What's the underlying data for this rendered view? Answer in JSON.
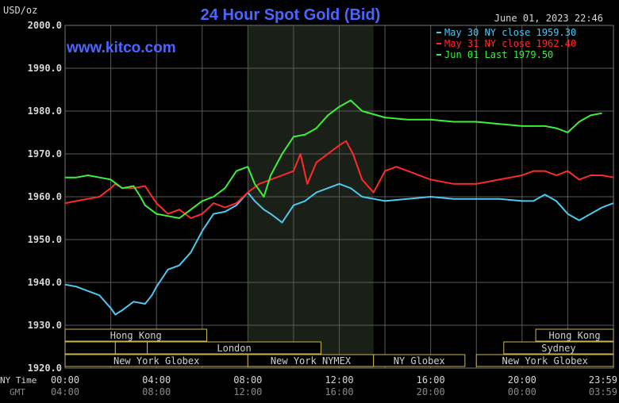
{
  "header": {
    "units": "USD/oz",
    "title": "24 Hour Spot Gold (Bid)",
    "timestamp": "June 01, 2023 22:46",
    "watermark": "www.kitco.com"
  },
  "colors": {
    "background": "#000000",
    "plot_background": "#000000",
    "nymex_shade": "#1a2018",
    "grid": "#5a5a5a",
    "title": "#4a66ff",
    "text": "#d8d8d8",
    "session_border": "#c8b45a",
    "session_text": "#d0d0d0",
    "blue": "#4fc8f0",
    "red": "#ff2a2a",
    "green": "#3cf03c"
  },
  "axis_labels": {
    "ny_time": "NY Time",
    "gmt": "GMT"
  },
  "sessions": [
    {
      "label": "Hong Kong",
      "start": 0,
      "end": 6.2,
      "row": 0
    },
    {
      "label": "",
      "start": 0,
      "end": 2.2,
      "row": 1
    },
    {
      "label": "",
      "start": 2.2,
      "end": 3.6,
      "row": 1
    },
    {
      "label": "London",
      "start": 3.6,
      "end": 11.2,
      "row": 1
    },
    {
      "label": "New York Globex",
      "start": 0,
      "end": 8.0,
      "row": 2
    },
    {
      "label": "New York NYMEX",
      "start": 8.0,
      "end": 13.5,
      "row": 2
    },
    {
      "label": "NY Globex",
      "start": 13.5,
      "end": 17.5,
      "row": 2
    },
    {
      "label": "Hong Kong",
      "start": 20.6,
      "end": 24,
      "row": 0
    },
    {
      "label": "Sydney",
      "start": 19.2,
      "end": 24,
      "row": 1
    },
    {
      "label": "New York Globex",
      "start": 18.0,
      "end": 24,
      "row": 2
    }
  ],
  "chart_data": {
    "type": "line",
    "title": "24 Hour Spot Gold (Bid)",
    "ylabel": "USD/oz",
    "ylim": [
      1920,
      2000
    ],
    "xlim": [
      0,
      24
    ],
    "shaded_region": [
      8.0,
      13.5
    ],
    "yticks": [
      {
        "value": 2000,
        "label": "2000.0"
      },
      {
        "value": 1990,
        "label": "1990.0"
      },
      {
        "value": 1980,
        "label": "1980.0"
      },
      {
        "value": 1970,
        "label": "1970.0"
      },
      {
        "value": 1960,
        "label": "1960.0"
      },
      {
        "value": 1950,
        "label": "1950.0"
      },
      {
        "value": 1940,
        "label": "1940.0"
      },
      {
        "value": 1930,
        "label": "1930.0"
      },
      {
        "value": 1920,
        "label": "1920.0"
      }
    ],
    "xticks": [
      {
        "value": 0,
        "ny": "00:00",
        "gmt": "04:00"
      },
      {
        "value": 4,
        "ny": "04:00",
        "gmt": "08:00"
      },
      {
        "value": 8,
        "ny": "08:00",
        "gmt": "12:00"
      },
      {
        "value": 12,
        "ny": "12:00",
        "gmt": "16:00"
      },
      {
        "value": 16,
        "ny": "16:00",
        "gmt": "20:00"
      },
      {
        "value": 20,
        "ny": "20:00",
        "gmt": "00:00"
      },
      {
        "value": 24,
        "ny": "23:59",
        "gmt": "03:59"
      }
    ],
    "legend": {
      "placement": "top-right",
      "entries": [
        {
          "series": 0,
          "label": "May 30 NY close",
          "value": "1959.30"
        },
        {
          "series": 1,
          "label": "May 31 NY close",
          "value": "1962.40"
        },
        {
          "series": 2,
          "label": "Jun 01 Last",
          "value": "1979.50"
        }
      ]
    },
    "series": [
      {
        "name": "May 30 NY close",
        "color": "#4fc8f0",
        "x": [
          0,
          0.5,
          1.0,
          1.5,
          2.0,
          2.2,
          2.5,
          3.0,
          3.5,
          3.8,
          4.0,
          4.5,
          5.0,
          5.5,
          6.0,
          6.5,
          7.0,
          7.5,
          8.0,
          8.3,
          8.7,
          9.0,
          9.5,
          10.0,
          10.5,
          11.0,
          11.5,
          12.0,
          12.5,
          13.0,
          13.5,
          14.0,
          15.0,
          16.0,
          17.0,
          18.0,
          19.0,
          20.0,
          20.5,
          21.0,
          21.5,
          22.0,
          22.5,
          23.0,
          23.5,
          24.0
        ],
        "values": [
          1939.5,
          1939,
          1938,
          1937,
          1934,
          1932.5,
          1933.5,
          1935.5,
          1935,
          1937,
          1939,
          1943,
          1944,
          1947,
          1952,
          1956,
          1956.5,
          1958,
          1961,
          1959,
          1957,
          1956,
          1954,
          1958,
          1959,
          1961,
          1962,
          1963,
          1962,
          1960,
          1959.5,
          1959,
          1959.5,
          1960,
          1959.5,
          1959.5,
          1959.5,
          1959,
          1959,
          1960.5,
          1959,
          1956,
          1954.5,
          1956,
          1957.5,
          1958.5
        ]
      },
      {
        "name": "May 31 NY close",
        "color": "#ff2a2a",
        "x": [
          0,
          0.5,
          1.0,
          1.5,
          2.0,
          2.2,
          2.5,
          3.0,
          3.5,
          4.0,
          4.5,
          5.0,
          5.5,
          6.0,
          6.5,
          7.0,
          7.5,
          8.0,
          8.5,
          9.0,
          9.5,
          10.0,
          10.3,
          10.6,
          11.0,
          11.5,
          12.0,
          12.3,
          12.6,
          13.0,
          13.5,
          14.0,
          14.5,
          15.0,
          16.0,
          17.0,
          18.0,
          19.0,
          20.0,
          20.5,
          21.0,
          21.5,
          22.0,
          22.5,
          23.0,
          23.5,
          24.0
        ],
        "values": [
          1958.5,
          1959,
          1959.5,
          1960,
          1962,
          1963,
          1962,
          1962,
          1962.5,
          1958.5,
          1956,
          1957,
          1955,
          1956,
          1958.5,
          1957.5,
          1958.5,
          1961,
          1963,
          1964,
          1965,
          1966,
          1970,
          1963,
          1968,
          1970,
          1972,
          1973,
          1970,
          1964,
          1961,
          1966,
          1967,
          1966,
          1964,
          1963,
          1963,
          1964,
          1965,
          1966,
          1966,
          1965,
          1966,
          1964,
          1965,
          1965,
          1964.5
        ]
      },
      {
        "name": "Jun 01 Last",
        "color": "#3cf03c",
        "x": [
          0,
          0.5,
          1.0,
          1.5,
          2.0,
          2.5,
          3.0,
          3.3,
          3.5,
          4.0,
          4.5,
          5.0,
          5.5,
          6.0,
          6.5,
          7.0,
          7.5,
          8.0,
          8.3,
          8.7,
          9.0,
          9.5,
          10.0,
          10.5,
          11.0,
          11.5,
          12.0,
          12.5,
          13.0,
          14.0,
          15.0,
          16.0,
          17.0,
          18.0,
          19.0,
          20.0,
          21.0,
          21.5,
          22.0,
          22.5,
          23.0,
          23.5
        ],
        "values": [
          1964.5,
          1964.5,
          1965,
          1964.5,
          1964,
          1962,
          1962.5,
          1960,
          1958,
          1956,
          1955.5,
          1955,
          1957,
          1959,
          1960,
          1962,
          1966,
          1967,
          1963,
          1960,
          1965,
          1970,
          1974,
          1974.5,
          1976,
          1979,
          1981,
          1982.5,
          1980,
          1978.5,
          1978,
          1978,
          1977.5,
          1977.5,
          1977,
          1976.5,
          1976.5,
          1976,
          1975,
          1977.5,
          1979,
          1979.5
        ]
      }
    ]
  }
}
